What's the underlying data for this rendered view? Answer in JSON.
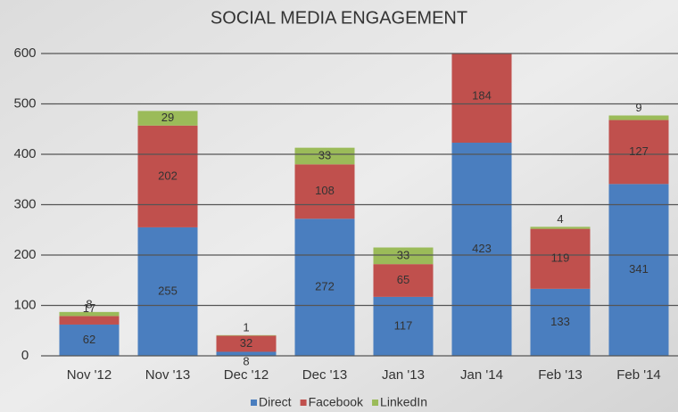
{
  "chart_data": {
    "type": "stacked_bar",
    "title": "SOCIAL MEDIA ENGAGEMENT",
    "categories": [
      "Nov '12",
      "Nov '13",
      "Dec '12",
      "Dec '13",
      "Jan '13",
      "Jan '14",
      "Feb '13",
      "Feb '14"
    ],
    "series": [
      {
        "name": "Direct",
        "color": "#4a7ebf",
        "values": [
          62,
          255,
          8,
          272,
          117,
          423,
          133,
          341
        ]
      },
      {
        "name": "Facebook",
        "color": "#c0504d",
        "values": [
          17,
          202,
          32,
          108,
          65,
          184,
          119,
          127
        ]
      },
      {
        "name": "LinkedIn",
        "color": "#9bbb59",
        "values": [
          8,
          29,
          1,
          33,
          33,
          null,
          4,
          9
        ]
      }
    ],
    "ylim": [
      0,
      600
    ],
    "yticks": [
      0,
      100,
      200,
      300,
      400,
      500,
      600
    ],
    "grid": true,
    "legend": "bottom"
  }
}
